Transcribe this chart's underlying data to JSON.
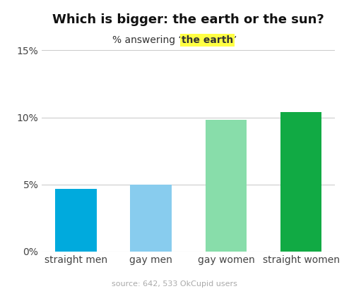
{
  "categories": [
    "straight men",
    "gay men",
    "gay women",
    "straight women"
  ],
  "values": [
    4.7,
    5.0,
    9.8,
    10.4
  ],
  "bar_colors": [
    "#00AADD",
    "#88CCEE",
    "#88DDAA",
    "#11AA44"
  ],
  "title": "Which is bigger: the earth or the sun?",
  "subtitle_prefix": "% answering ‘",
  "subtitle_highlight": "the earth",
  "subtitle_suffix": "’",
  "highlight_color": "#FFFF44",
  "ylim": [
    0,
    15
  ],
  "yticks": [
    0,
    5,
    10,
    15
  ],
  "ytick_labels": [
    "0%",
    "5%",
    "10%",
    "15%"
  ],
  "source_text": "source: 642, 533 OkCupid users",
  "background_color": "#ffffff",
  "grid_color": "#cccccc",
  "title_color": "#111111",
  "axis_label_color": "#444444",
  "source_color": "#aaaaaa"
}
